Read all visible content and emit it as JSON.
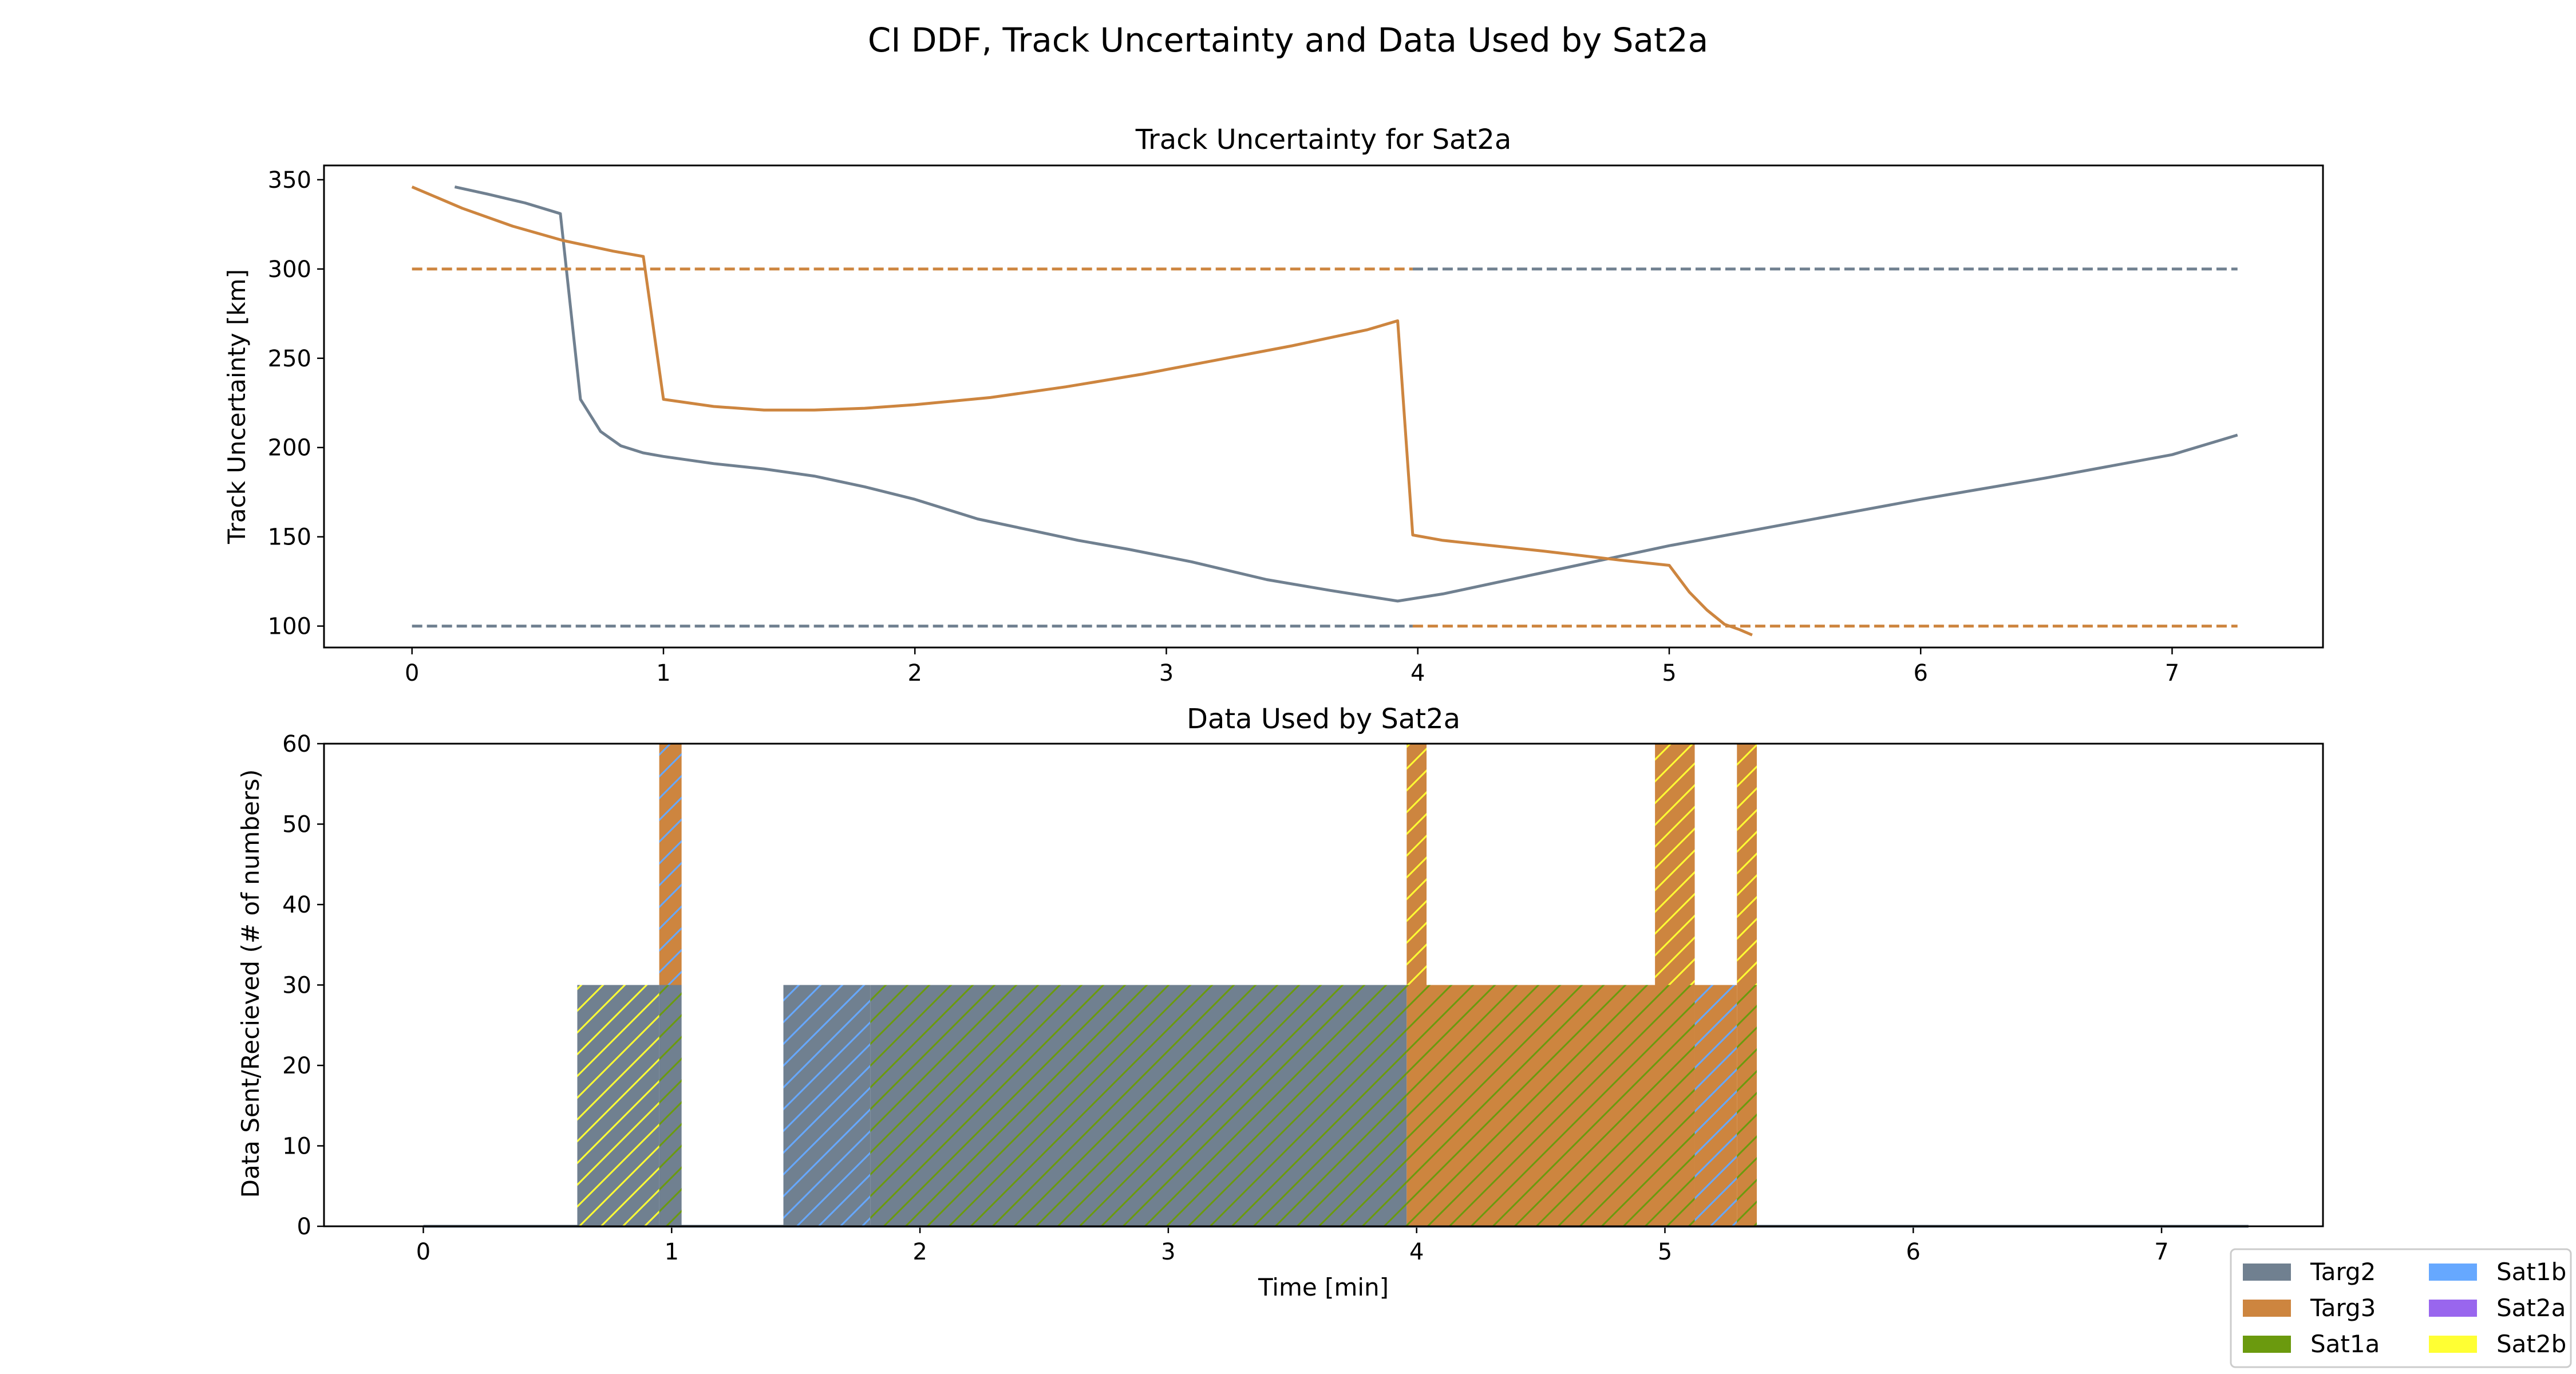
{
  "suptitle": "CI DDF, Track Uncertainty and Data Used by Sat2a",
  "colors": {
    "Targ2": "#708090",
    "Targ3": "#CD853F",
    "Sat1a": "#6B9A0E",
    "Sat1b": "#66A8FF",
    "Sat2a": "#9966EE",
    "Sat2b": "#FFFF33"
  },
  "legend": {
    "entries": [
      {
        "label": "Targ2",
        "color_key": "Targ2"
      },
      {
        "label": "Targ3",
        "color_key": "Targ3"
      },
      {
        "label": "Sat1a",
        "color_key": "Sat1a"
      },
      {
        "label": "Sat1b",
        "color_key": "Sat1b"
      },
      {
        "label": "Sat2a",
        "color_key": "Sat2a"
      },
      {
        "label": "Sat2b",
        "color_key": "Sat2b"
      }
    ]
  },
  "chart_data": [
    {
      "type": "line",
      "title": "Track Uncertainty for Sat2a",
      "xlabel": "",
      "ylabel": "Track Uncertainty [km]",
      "xlim": [
        -0.35,
        7.6
      ],
      "ylim": [
        88,
        358
      ],
      "xticks": [
        0,
        1,
        2,
        3,
        4,
        5,
        6,
        7
      ],
      "yticks": [
        100,
        150,
        200,
        250,
        300,
        350
      ],
      "grid": false,
      "series": [
        {
          "color_key": "Targ2",
          "style": "solid",
          "x": [
            0.17,
            0.3,
            0.45,
            0.59,
            0.67,
            0.75,
            0.83,
            0.92,
            1.0,
            1.2,
            1.4,
            1.6,
            1.8,
            2.0,
            2.25,
            2.45,
            2.65,
            2.85,
            3.1,
            3.4,
            3.65,
            3.92,
            4.1,
            4.5,
            5.0,
            5.5,
            6.0,
            6.5,
            7.0,
            7.26
          ],
          "y": [
            346,
            342,
            337,
            331,
            227,
            209,
            201,
            197,
            195,
            191,
            188,
            184,
            178,
            171,
            160,
            154,
            148,
            143,
            136,
            126,
            120,
            114,
            118,
            130,
            145,
            158,
            171,
            183,
            196,
            207
          ]
        },
        {
          "color_key": "Targ3",
          "style": "solid",
          "x": [
            0.0,
            0.2,
            0.4,
            0.6,
            0.8,
            0.92,
            1.0,
            1.2,
            1.4,
            1.6,
            1.8,
            2.0,
            2.3,
            2.6,
            2.9,
            3.2,
            3.5,
            3.8,
            3.92,
            3.98,
            4.1,
            4.5,
            4.8,
            5.0,
            5.08,
            5.15,
            5.22,
            5.28,
            5.33
          ],
          "y": [
            346,
            334,
            324,
            316,
            310,
            307,
            227,
            223,
            221,
            221,
            222,
            224,
            228,
            234,
            241,
            249,
            257,
            266,
            271,
            151,
            148,
            142,
            137,
            134,
            119,
            109,
            101,
            98,
            95
          ]
        },
        {
          "color_key": "Targ3",
          "style": "dashed",
          "x": [
            0.0,
            3.98
          ],
          "y": [
            300,
            300
          ]
        },
        {
          "color_key": "Targ2",
          "style": "dashed",
          "x": [
            3.98,
            7.26
          ],
          "y": [
            300,
            300
          ]
        },
        {
          "color_key": "Targ2",
          "style": "dashed",
          "x": [
            0.0,
            3.98
          ],
          "y": [
            100,
            100
          ]
        },
        {
          "color_key": "Targ3",
          "style": "dashed",
          "x": [
            3.98,
            7.26
          ],
          "y": [
            100,
            100
          ]
        }
      ]
    },
    {
      "type": "bar",
      "title": "Data Used by Sat2a",
      "xlabel": "Time [min]",
      "ylabel": "Data Sent/Recieved (# of numbers)",
      "xlim": [
        -0.4,
        7.65
      ],
      "ylim": [
        0,
        60
      ],
      "xticks": [
        0,
        1,
        2,
        3,
        4,
        5,
        6,
        7
      ],
      "yticks": [
        0,
        10,
        20,
        30,
        40,
        50,
        60
      ],
      "grid": false,
      "baseline": {
        "x": [
          0.0,
          7.35
        ],
        "y": 0,
        "color_key": "Targ2"
      },
      "bars": [
        {
          "x0": 0.62,
          "x1": 0.95,
          "bottom": 0,
          "top": 30,
          "fill_key": "Targ2",
          "hatch_key": "Sat2b"
        },
        {
          "x0": 0.95,
          "x1": 1.04,
          "bottom": 0,
          "top": 30,
          "fill_key": "Targ2",
          "hatch_key": "Sat1a"
        },
        {
          "x0": 0.95,
          "x1": 1.04,
          "bottom": 30,
          "top": 60,
          "fill_key": "Targ3",
          "hatch_key": "Sat1b"
        },
        {
          "x0": 1.45,
          "x1": 1.8,
          "bottom": 0,
          "top": 30,
          "fill_key": "Targ2",
          "hatch_key": "Sat1b"
        },
        {
          "x0": 1.8,
          "x1": 3.96,
          "bottom": 0,
          "top": 30,
          "fill_key": "Targ2",
          "hatch_key": "Sat1a"
        },
        {
          "x0": 3.96,
          "x1": 4.04,
          "bottom": 30,
          "top": 60,
          "fill_key": "Targ3",
          "hatch_key": "Sat2b"
        },
        {
          "x0": 3.96,
          "x1": 5.12,
          "bottom": 0,
          "top": 30,
          "fill_key": "Targ3",
          "hatch_key": "Sat1a"
        },
        {
          "x0": 4.96,
          "x1": 5.12,
          "bottom": 30,
          "top": 60,
          "fill_key": "Targ3",
          "hatch_key": "Sat2b"
        },
        {
          "x0": 5.12,
          "x1": 5.29,
          "bottom": 0,
          "top": 30,
          "fill_key": "Targ3",
          "hatch_key": "Sat1b"
        },
        {
          "x0": 5.29,
          "x1": 5.37,
          "bottom": 0,
          "top": 30,
          "fill_key": "Targ3",
          "hatch_key": "Sat1a"
        },
        {
          "x0": 5.29,
          "x1": 5.37,
          "bottom": 30,
          "top": 60,
          "fill_key": "Targ3",
          "hatch_key": "Sat2b"
        }
      ]
    }
  ]
}
